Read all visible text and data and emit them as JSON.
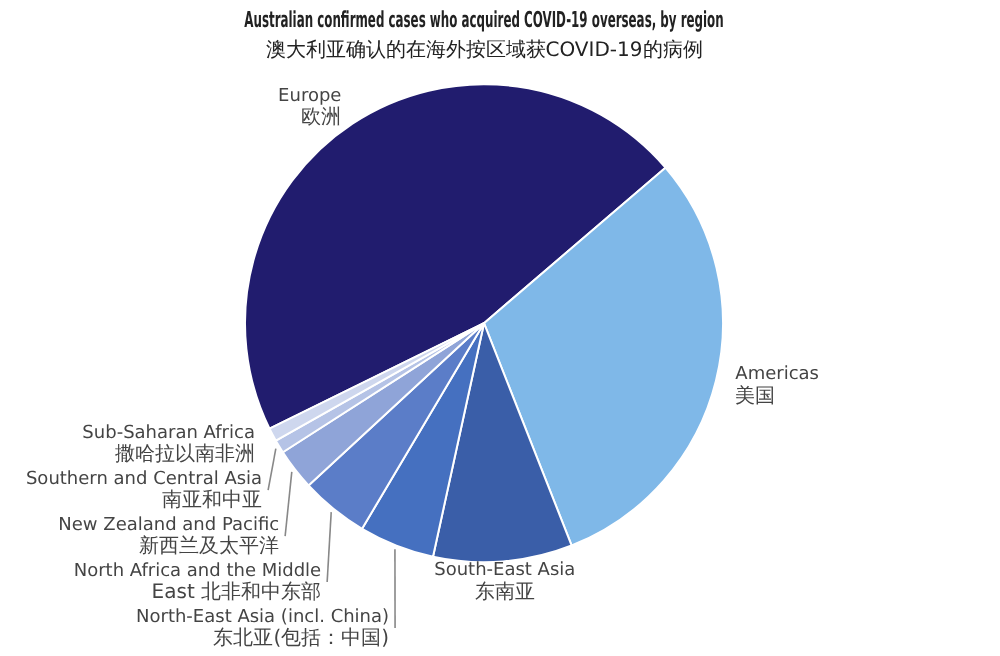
{
  "chart_data": {
    "type": "pie",
    "title": "Australian confirmed cases who acquired COVID-19 overseas, by region",
    "subtitle": "澳大利亚确认的在海外按区域获COVID-19的病例",
    "categories": [
      "Europe\n欧洲",
      "Americas\n美国",
      "South-East Asia\n东南亚",
      "North-East Asia (incl. China)\n东北亚(包括：中国)",
      "North Africa and the Middle\nEast 北非和中东部",
      "New Zealand and Pacific\n新西兰及太平洋",
      "Southern and Central Asia\n南亚和中亚",
      "Sub-Saharan Africa\n撒哈拉以南非洲"
    ],
    "values": [
      46.0,
      30.3,
      9.4,
      5.1,
      4.6,
      2.8,
      0.9,
      0.9
    ],
    "colors": [
      "#211c6e",
      "#7fb8e8",
      "#3a5ea8",
      "#4570c0",
      "#5b7dc8",
      "#8fa4d8",
      "#b5c3e6",
      "#ced7ee"
    ]
  }
}
